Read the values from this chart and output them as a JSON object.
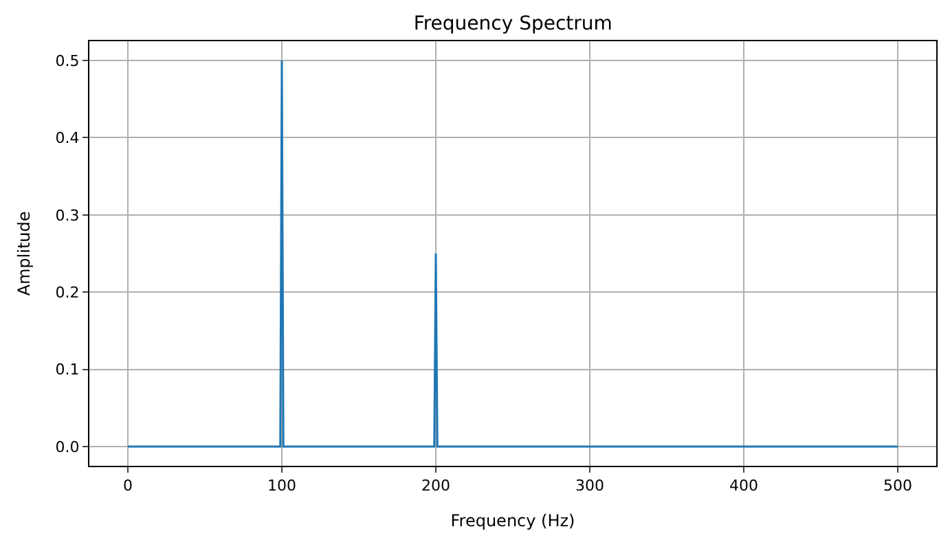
{
  "chart_data": {
    "type": "line",
    "title": "Frequency Spectrum",
    "xlabel": "Frequency (Hz)",
    "ylabel": "Amplitude",
    "x": [
      0,
      99,
      100,
      101,
      199,
      200,
      201,
      500
    ],
    "series": [
      {
        "color": "#1f77b4",
        "values": [
          0,
          0,
          0.5,
          0,
          0,
          0.25,
          0,
          0
        ]
      }
    ],
    "xlim": [
      -25,
      525
    ],
    "xticks": [
      0,
      100,
      200,
      300,
      400,
      500
    ],
    "ylim": [
      -0.025,
      0.525
    ],
    "yticks": [
      {
        "value": 0,
        "label": "0.0"
      },
      0.1,
      0.2,
      0.3,
      0.4,
      0.5
    ],
    "grid": true,
    "legend": false,
    "marker": "none",
    "line_style": "solid"
  }
}
